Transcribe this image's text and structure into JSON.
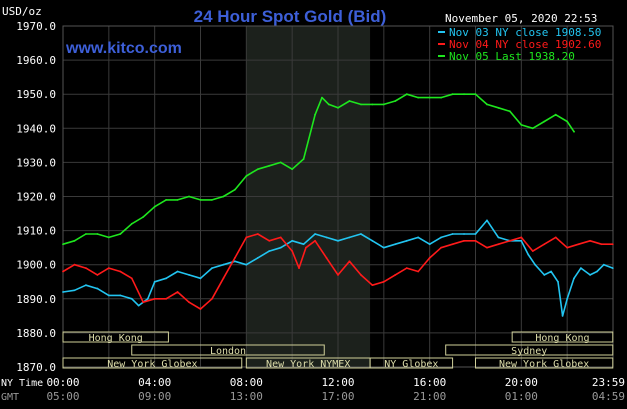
{
  "header": {
    "title": "24 Hour Spot Gold (Bid)",
    "brand": "www.kitco.com",
    "timestamp": "November 05, 2020 22:53"
  },
  "colors": {
    "background": "#000000",
    "title": "#3d5fd8",
    "brand": "#3d5fd8",
    "grid": "#3a3a3a",
    "shaded": "#1c211c",
    "axis_text": "#ffffff",
    "series_cyan": "#22c4f0",
    "series_red": "#ff1a1a",
    "series_green": "#1ee61e",
    "market_box": "#cfcf99",
    "market_text": "#ddddaa"
  },
  "chart_data": {
    "type": "line",
    "title": "24 Hour Spot Gold (Bid)",
    "ylabel": "USD/oz",
    "ylim": [
      1870,
      1970
    ],
    "yticks": [
      "1970.0",
      "1960.0",
      "1950.0",
      "1940.0",
      "1930.0",
      "1920.0",
      "1910.0",
      "1900.0",
      "1890.0",
      "1880.0",
      "1870.0"
    ],
    "xlim": [
      0,
      24
    ],
    "grid": true,
    "legend_position": "top-right",
    "x_rows": [
      {
        "label": "NY Time",
        "ticks": [
          "00:00",
          "04:00",
          "08:00",
          "12:00",
          "16:00",
          "20:00",
          "23:59"
        ]
      },
      {
        "label": "GMT",
        "ticks": [
          "05:00",
          "09:00",
          "13:00",
          "17:00",
          "21:00",
          "01:00",
          "04:59"
        ]
      }
    ],
    "shaded_region": [
      8,
      13.4
    ],
    "series": [
      {
        "name": "Nov 03 NY close 1908.50",
        "color": "#22c4f0",
        "x": [
          0,
          0.5,
          1,
          1.5,
          2,
          2.5,
          3,
          3.3,
          3.7,
          4,
          4.5,
          5,
          5.5,
          6,
          6.5,
          7,
          7.5,
          8,
          8.5,
          9,
          9.5,
          10,
          10.5,
          11,
          11.5,
          12,
          12.5,
          13,
          13.5,
          14,
          14.5,
          15,
          15.5,
          16,
          16.5,
          17,
          17.5,
          18,
          18.5,
          19,
          19.5,
          20,
          20.3,
          20.6,
          21,
          21.3,
          21.6,
          21.8,
          22,
          22.3,
          22.6,
          23,
          23.3,
          23.6,
          23.99
        ],
        "y": [
          1892,
          1892.5,
          1894,
          1893,
          1891,
          1891,
          1890,
          1888,
          1890,
          1895,
          1896,
          1898,
          1897,
          1896,
          1899,
          1900,
          1901,
          1900,
          1902,
          1904,
          1905,
          1907,
          1906,
          1909,
          1908,
          1907,
          1908,
          1909,
          1907,
          1905,
          1906,
          1907,
          1908,
          1906,
          1908,
          1909,
          1909,
          1909,
          1913,
          1908,
          1907,
          1907,
          1903,
          1900,
          1897,
          1898,
          1895,
          1885,
          1890,
          1896,
          1899,
          1897,
          1898,
          1900,
          1899
        ]
      },
      {
        "name": "Nov 04 NY close 1902.60",
        "color": "#ff1a1a",
        "x": [
          0,
          0.5,
          1,
          1.5,
          2,
          2.5,
          3,
          3.5,
          4,
          4.5,
          5,
          5.5,
          6,
          6.5,
          7,
          7.5,
          8,
          8.5,
          9,
          9.5,
          10,
          10.3,
          10.6,
          11,
          11.5,
          12,
          12.5,
          13,
          13.5,
          14,
          14.5,
          15,
          15.5,
          16,
          16.5,
          17,
          17.5,
          18,
          18.5,
          19,
          19.5,
          20,
          20.5,
          21,
          21.5,
          22,
          22.5,
          23,
          23.5,
          23.99
        ],
        "y": [
          1898,
          1900,
          1899,
          1897,
          1899,
          1898,
          1896,
          1889,
          1890,
          1890,
          1892,
          1889,
          1887,
          1890,
          1896,
          1902,
          1908,
          1909,
          1907,
          1908,
          1904,
          1899,
          1905,
          1907,
          1902,
          1897,
          1901,
          1897,
          1894,
          1895,
          1897,
          1899,
          1898,
          1902,
          1905,
          1906,
          1907,
          1907,
          1905,
          1906,
          1907,
          1908,
          1904,
          1906,
          1908,
          1905,
          1906,
          1907,
          1906,
          1906
        ]
      },
      {
        "name": "Nov 05 Last 1938.20",
        "color": "#1ee61e",
        "x": [
          0,
          0.5,
          1,
          1.5,
          2,
          2.5,
          3,
          3.5,
          4,
          4.5,
          5,
          5.5,
          6,
          6.5,
          7,
          7.5,
          8,
          8.5,
          9,
          9.5,
          10,
          10.5,
          11,
          11.3,
          11.6,
          12,
          12.5,
          13,
          13.5,
          14,
          14.5,
          15,
          15.5,
          16,
          16.5,
          17,
          17.5,
          18,
          18.5,
          19,
          19.5,
          20,
          20.5,
          21,
          21.5,
          22,
          22.3
        ],
        "y": [
          1906,
          1907,
          1909,
          1909,
          1908,
          1909,
          1912,
          1914,
          1917,
          1919,
          1919,
          1920,
          1919,
          1919,
          1920,
          1922,
          1926,
          1928,
          1929,
          1930,
          1928,
          1931,
          1944,
          1949,
          1947,
          1946,
          1948,
          1947,
          1947,
          1947,
          1948,
          1950,
          1949,
          1949,
          1949,
          1950,
          1950,
          1950,
          1947,
          1946,
          1945,
          1941,
          1940,
          1942,
          1944,
          1942,
          1939
        ]
      }
    ],
    "markets": [
      {
        "label": "Hong Kong",
        "start": 0,
        "end": 4.6,
        "row": 0
      },
      {
        "label": "Hong Kong",
        "start": 19.6,
        "end": 23.99,
        "row": 0
      },
      {
        "label": "London",
        "start": 3,
        "end": 11.4,
        "row": 1
      },
      {
        "label": "Sydney",
        "start": 16.7,
        "end": 23.99,
        "row": 1
      },
      {
        "label": "New York Globex",
        "start": 0,
        "end": 7.8,
        "row": 2
      },
      {
        "label": "New York NYMEX",
        "start": 8,
        "end": 13.4,
        "row": 2
      },
      {
        "label": "NY Globex",
        "start": 13.4,
        "end": 17,
        "row": 2
      },
      {
        "label": "New York Globex",
        "start": 18,
        "end": 23.99,
        "row": 2
      }
    ]
  }
}
